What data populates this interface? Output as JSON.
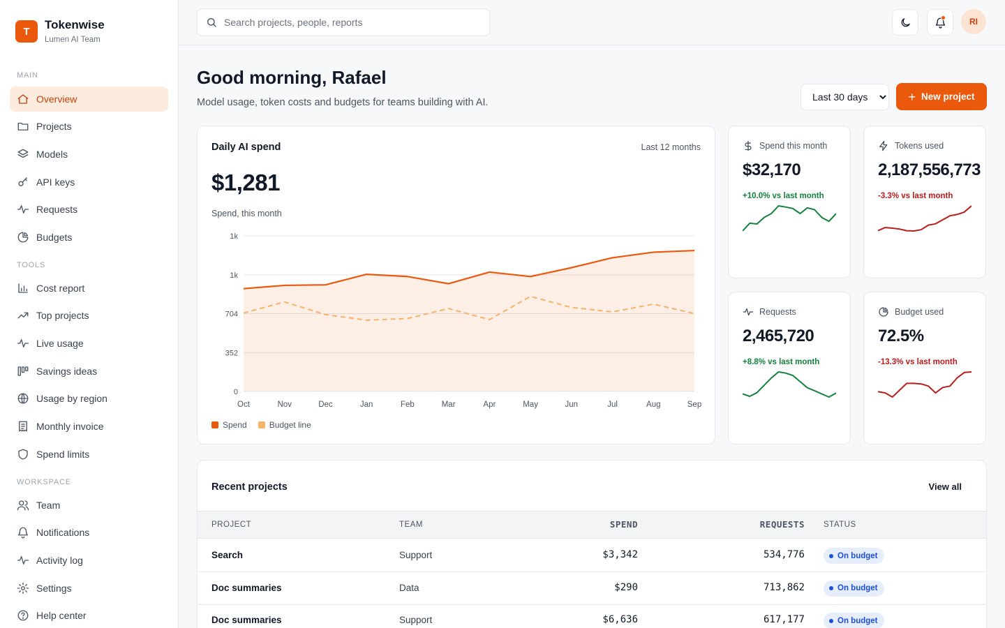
{
  "brand": {
    "logo_letter": "T",
    "name": "Tokenwise",
    "team": "Lumen AI Team"
  },
  "sidebar": {
    "sections": {
      "main": "MAIN",
      "tools": "TOOLS",
      "workspace": "WORKSPACE"
    },
    "main_items": [
      {
        "label": "Overview",
        "icon": "home-icon",
        "active": true
      },
      {
        "label": "Projects",
        "icon": "folder-icon"
      },
      {
        "label": "Models",
        "icon": "layers-icon"
      },
      {
        "label": "API keys",
        "icon": "key-icon"
      },
      {
        "label": "Requests",
        "icon": "activity-icon"
      },
      {
        "label": "Budgets",
        "icon": "pie-icon"
      }
    ],
    "tools_items": [
      {
        "label": "Cost report",
        "icon": "bar-chart-icon"
      },
      {
        "label": "Top projects",
        "icon": "trending-up-icon"
      },
      {
        "label": "Live usage",
        "icon": "activity-icon"
      },
      {
        "label": "Savings ideas",
        "icon": "columns-icon"
      },
      {
        "label": "Usage by region",
        "icon": "globe-icon"
      },
      {
        "label": "Monthly invoice",
        "icon": "receipt-icon"
      },
      {
        "label": "Spend limits",
        "icon": "shield-icon"
      }
    ],
    "workspace_items": [
      {
        "label": "Team",
        "icon": "users-icon"
      },
      {
        "label": "Notifications",
        "icon": "bell-icon"
      },
      {
        "label": "Activity log",
        "icon": "activity-icon"
      },
      {
        "label": "Settings",
        "icon": "gear-icon"
      },
      {
        "label": "Help center",
        "icon": "help-icon"
      }
    ]
  },
  "topbar": {
    "search_placeholder": "Search projects, people, reports",
    "avatar_initials": "RI"
  },
  "header": {
    "title": "Good morning, Rafael",
    "subtitle": "Model usage, token costs and budgets for teams building with AI.",
    "range_selected": "Last 30 days",
    "new_project_label": "New project"
  },
  "spend_card": {
    "title": "Daily AI spend",
    "range": "Last 12 months",
    "value": "$1,281",
    "caption": "Spend, this month"
  },
  "chart_data": {
    "type": "area",
    "title": "Daily AI spend",
    "x": [
      "Oct",
      "Nov",
      "Dec",
      "Jan",
      "Feb",
      "Mar",
      "Apr",
      "May",
      "Jun",
      "Jul",
      "Aug",
      "Sep"
    ],
    "ytick_values": [
      0,
      352,
      704,
      1056,
      1408
    ],
    "ytick_labels": [
      "0",
      "352",
      "704",
      "1k",
      "1k"
    ],
    "ylim": [
      0,
      1408
    ],
    "grid": true,
    "legend_position": "bottom-left",
    "series": [
      {
        "name": "Spend",
        "color": "#ea580c",
        "style": "solid-area",
        "values": [
          930,
          960,
          965,
          1060,
          1040,
          975,
          1080,
          1040,
          1120,
          1210,
          1260,
          1275
        ]
      },
      {
        "name": "Budget line",
        "color": "#f6b26b",
        "style": "dashed",
        "values": [
          710,
          810,
          695,
          645,
          660,
          750,
          650,
          860,
          760,
          720,
          790,
          705
        ]
      }
    ]
  },
  "kpis": [
    {
      "label": "Spend this month",
      "icon": "dollar-icon",
      "value": "$32,170",
      "delta": "+10.0% vs last month",
      "trend": "up",
      "color": "#15803d",
      "spark": [
        2,
        4,
        3.8,
        5.5,
        6.5,
        8.5,
        8.2,
        7.8,
        6.5,
        8,
        7.5,
        5.5,
        4.5,
        6.5
      ]
    },
    {
      "label": "Tokens used",
      "icon": "zap-icon",
      "value": "2,187,556,773",
      "delta": "-3.3% vs last month",
      "trend": "down",
      "color": "#b91c1c",
      "spark": [
        3,
        4,
        3.8,
        3.5,
        3,
        2.9,
        3.3,
        4.8,
        5.2,
        6.5,
        7.8,
        8.2,
        9,
        11
      ]
    },
    {
      "label": "Requests",
      "icon": "activity-icon",
      "value": "2,465,720",
      "delta": "+8.8% vs last month",
      "trend": "up",
      "color": "#15803d",
      "spark": [
        2.5,
        1.5,
        3,
        6,
        9,
        11.5,
        11,
        10,
        7.5,
        5,
        3.8,
        2.5,
        1.2,
        2.8
      ]
    },
    {
      "label": "Budget used",
      "icon": "pie-icon",
      "value": "72.5%",
      "delta": "-13.3% vs last month",
      "trend": "down",
      "color": "#b91c1c",
      "spark": [
        5,
        4.5,
        3,
        5.5,
        8,
        8,
        7.8,
        7,
        4.5,
        6.5,
        7,
        10,
        12,
        12.2
      ]
    }
  ],
  "projects": {
    "title": "Recent projects",
    "view_all": "View all",
    "columns": [
      "PROJECT",
      "TEAM",
      "SPEND",
      "REQUESTS",
      "STATUS"
    ],
    "rows": [
      {
        "project": "Search",
        "team": "Support",
        "spend": "$3,342",
        "requests": "534,776",
        "status": "On budget"
      },
      {
        "project": "Doc summaries",
        "team": "Data",
        "spend": "$290",
        "requests": "713,862",
        "status": "On budget"
      },
      {
        "project": "Doc summaries",
        "team": "Support",
        "spend": "$6,636",
        "requests": "617,177",
        "status": "On budget"
      }
    ]
  }
}
